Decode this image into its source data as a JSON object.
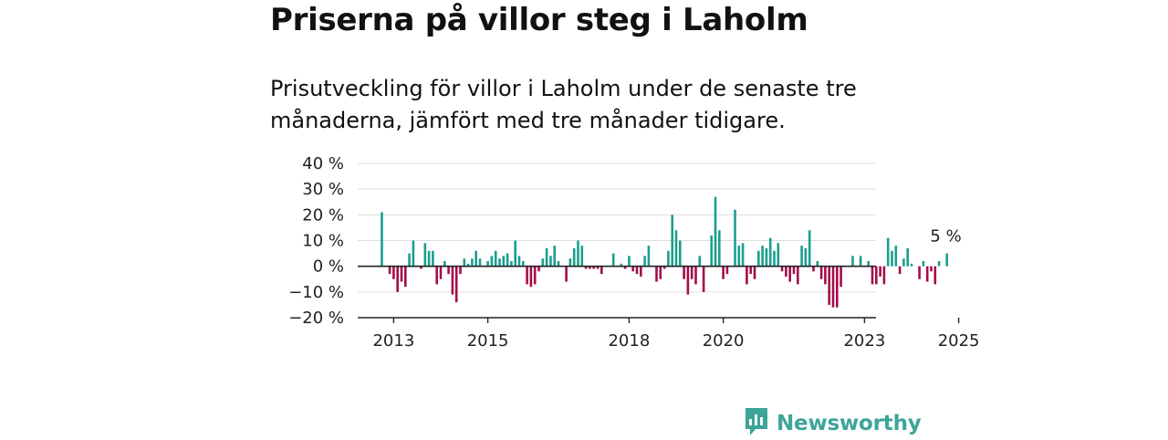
{
  "title": "Priserna på villor steg i Laholm",
  "subtitle": "Prisutveckling för villor i Laholm under de senaste tre månaderna, jämfört med tre månader tidigare.",
  "brand": {
    "name": "Newsworthy",
    "icon": "newsworthy-logo-icon"
  },
  "colors": {
    "positive": "#1a9e8f",
    "negative": "#a30d4a",
    "axis": "#222222",
    "grid": "#dddddd",
    "brand": "#3ea49a"
  },
  "chart_data": {
    "type": "bar",
    "ylim": [
      -20,
      40
    ],
    "yticks": [
      40,
      30,
      20,
      10,
      0,
      -10,
      -20
    ],
    "ytick_labels": [
      "40 %",
      "30 %",
      "20 %",
      "10 %",
      "0 %",
      "−10 %",
      "−20 %"
    ],
    "xticks": [
      "2013",
      "2015",
      "2018",
      "2020",
      "2023",
      "2025"
    ],
    "x_start": "2012-10",
    "annotation": {
      "text": "5 %"
    },
    "grid": true,
    "legend": "none",
    "values": [
      21,
      0,
      -3,
      -5,
      -10,
      -6,
      -8,
      5,
      10,
      0,
      -1,
      9,
      6,
      6,
      -7,
      -5,
      2,
      -3,
      -11,
      -14,
      -3,
      3,
      1,
      3,
      6,
      3,
      0,
      2,
      4,
      6,
      3,
      4,
      5,
      2,
      10,
      4,
      2,
      -7,
      -8,
      -7,
      -2,
      3,
      7,
      4,
      8,
      2,
      0,
      -6,
      3,
      7,
      10,
      8,
      -1,
      -1,
      -1,
      -1,
      -3,
      0,
      0,
      5,
      0,
      1,
      -1,
      4,
      -2,
      -3,
      -4,
      4,
      8,
      0,
      -6,
      -5,
      -1,
      6,
      20,
      14,
      10,
      -5,
      -11,
      -5,
      -7,
      4,
      -10,
      0,
      12,
      27,
      14,
      -5,
      -3,
      0,
      22,
      8,
      9,
      -7,
      -3,
      -5,
      6,
      8,
      7,
      11,
      6,
      9,
      -2,
      -4,
      -6,
      -3,
      -7,
      8,
      7,
      14,
      -2,
      2,
      -5,
      -7,
      -15,
      -16,
      -16,
      -8,
      0,
      0,
      4,
      0,
      4,
      0,
      2,
      -7,
      -7,
      -4,
      -7,
      11,
      6,
      8,
      -3,
      3,
      7,
      1,
      0,
      -5,
      2,
      -6,
      -2,
      -7,
      2,
      0,
      5
    ]
  }
}
